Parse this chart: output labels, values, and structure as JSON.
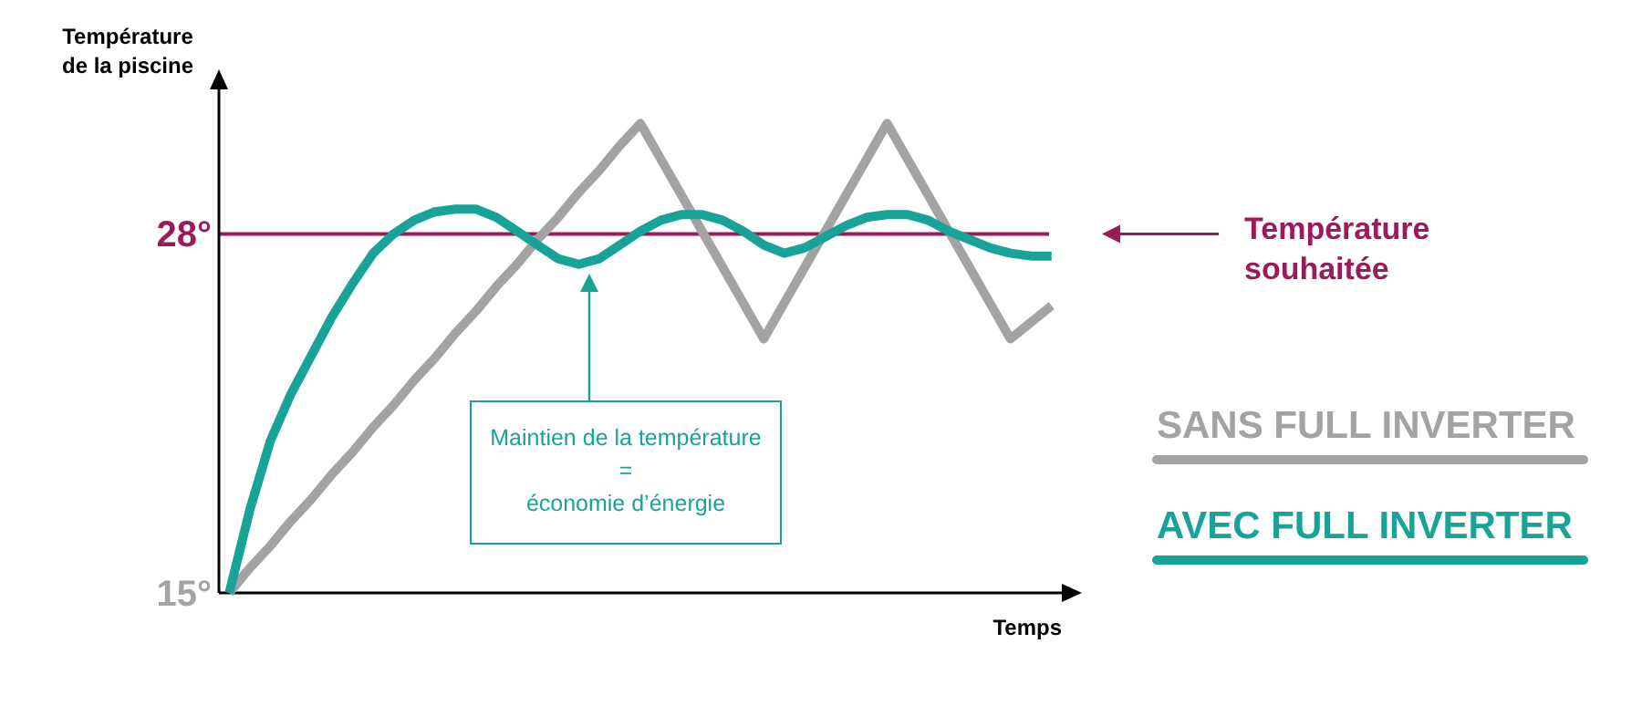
{
  "chart_data": {
    "type": "line",
    "ylabel": "Température de la piscine",
    "xlabel": "Temps",
    "categories": [
      null,
      null,
      null,
      null,
      null,
      null,
      null,
      null,
      null,
      null,
      null,
      null,
      null,
      null,
      null,
      null,
      null,
      null,
      null,
      null,
      null,
      null,
      null,
      null,
      null,
      null,
      null,
      null,
      null,
      null,
      null,
      null,
      null,
      null,
      null,
      null,
      null,
      null,
      null,
      null,
      null
    ],
    "ylim": [
      15,
      33.3
    ],
    "yticks": [
      {
        "value": 15,
        "label": "15°"
      },
      {
        "value": 28,
        "label": "28°"
      }
    ],
    "tick_labels": "y",
    "grid": false,
    "marker": "none",
    "line_style": "solid",
    "series": [
      {
        "name": "SANS FULL INVERTER",
        "color": "#a3a3a3",
        "values": [
          15,
          15.9,
          16.7,
          17.6,
          18.4,
          19.3,
          20.1,
          21,
          21.8,
          22.7,
          23.5,
          24.4,
          25.2,
          26.1,
          26.9,
          27.8,
          28.6,
          29.5,
          30.3,
          31.2,
          32,
          30.7,
          29.4,
          28.1,
          26.8,
          25.5,
          24.2,
          25.5,
          26.8,
          28.1,
          29.4,
          30.7,
          32,
          30.7,
          29.4,
          28.1,
          26.8,
          25.5,
          24.2,
          24.8,
          25.4
        ]
      },
      {
        "name": "AVEC FULL INVERTER",
        "color": "#17a398",
        "values": [
          15,
          18,
          20.5,
          22.2,
          23.6,
          25,
          26.2,
          27.3,
          28,
          28.5,
          28.8,
          28.9,
          28.9,
          28.6,
          28.1,
          27.6,
          27.1,
          26.9,
          27.1,
          27.6,
          28.1,
          28.5,
          28.7,
          28.7,
          28.5,
          28.1,
          27.6,
          27.3,
          27.5,
          27.9,
          28.3,
          28.6,
          28.7,
          28.7,
          28.5,
          28.1,
          27.8,
          27.5,
          27.3,
          27.2,
          27.2
        ]
      }
    ],
    "ref_lines": [
      {
        "axis": "y",
        "value": 28,
        "label": "Température souhaitée",
        "color": "#9b1b5a"
      }
    ],
    "annotations": [
      "Maintien de la température\n=\néconomie d’énergie"
    ]
  }
}
